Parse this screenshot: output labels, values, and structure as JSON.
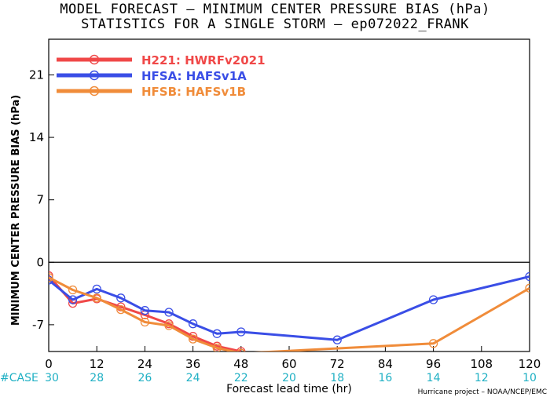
{
  "title_line1": "MODEL FORECAST – MINIMUM CENTER PRESSURE BIAS (hPa)",
  "title_line2": "STATISTICS FOR A SINGLE STORM – ep072022_FRANK",
  "credit": "Hurricane project – NOAA/NCEP/EMC",
  "case_label": "#CASE",
  "case_color": "#1fb0c4",
  "chart_data": {
    "type": "line",
    "xlabel": "Forecast lead time (hr)",
    "ylabel": "MINIMUM CENTER PRESSURE BIAS (hPa)",
    "xlim": [
      0,
      120
    ],
    "ylim": [
      -10,
      25
    ],
    "xticks": [
      0,
      12,
      24,
      36,
      48,
      60,
      72,
      84,
      96,
      108,
      120
    ],
    "yticks": [
      -7,
      0,
      7,
      14,
      21
    ],
    "xtick_labels": [
      "0",
      "12",
      "24",
      "36",
      "48",
      "60",
      "72",
      "84",
      "96",
      "108",
      "120"
    ],
    "ytick_labels": [
      "-7",
      "0",
      "7",
      "14",
      "21"
    ],
    "zero_line": 0,
    "legend_position": "top-left",
    "case_counts": {
      "x": [
        0,
        12,
        24,
        36,
        48,
        60,
        72,
        84,
        96,
        108,
        120
      ],
      "labels": [
        "30",
        "28",
        "26",
        "24",
        "22",
        "20",
        "18",
        "16",
        "14",
        "12",
        "10"
      ]
    },
    "series": [
      {
        "name": "H221: HWRFv2021",
        "color": "#f04848",
        "x": [
          0,
          6,
          12,
          18,
          24,
          30,
          36,
          42,
          48
        ],
        "y": [
          -1.5,
          -4.6,
          -4.1,
          -5.0,
          -5.9,
          -6.9,
          -8.3,
          -9.4,
          -10.0
        ]
      },
      {
        "name": "HFSA: HAFSv1A",
        "color": "#3a4ee6",
        "x": [
          0,
          6,
          12,
          18,
          24,
          30,
          36,
          42,
          48,
          72,
          96,
          120
        ],
        "y": [
          -2.0,
          -4.2,
          -3.0,
          -4.0,
          -5.4,
          -5.6,
          -6.9,
          -8.0,
          -7.8,
          -8.7,
          -4.2,
          -1.6
        ]
      },
      {
        "name": "HFSB: HAFSv1B",
        "color": "#f08c3a",
        "x": [
          0,
          6,
          12,
          18,
          24,
          30,
          36,
          42,
          48,
          96,
          120
        ],
        "y": [
          -1.7,
          -3.1,
          -4.0,
          -5.3,
          -6.7,
          -7.1,
          -8.6,
          -9.6,
          -10.2,
          -9.1,
          -2.9
        ]
      }
    ]
  }
}
